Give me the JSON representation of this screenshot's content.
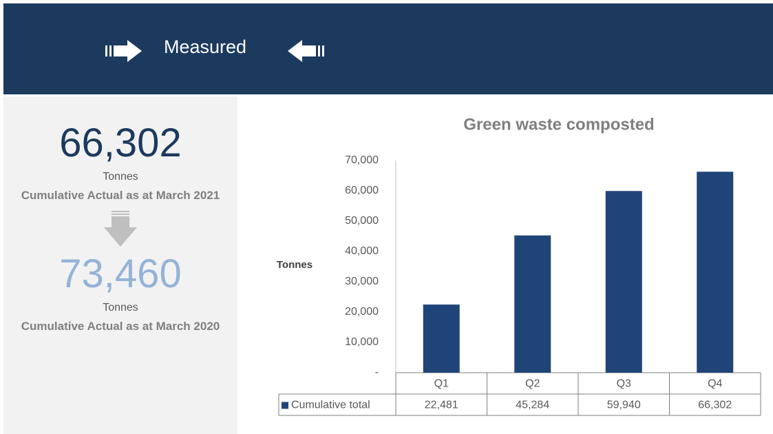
{
  "header": {
    "title": "Measured"
  },
  "kpis": [
    {
      "value": "66,302",
      "unit": "Tonnes",
      "label": "Cumulative Actual as at March 2021"
    },
    {
      "value": "73,460",
      "unit": "Tonnes",
      "label": "Cumulative Actual as at March 2020"
    }
  ],
  "chart_data": {
    "type": "bar",
    "title": "Green waste composted",
    "y_label": "Tonnes",
    "categories": [
      "Q1",
      "Q2",
      "Q3",
      "Q4"
    ],
    "series": [
      {
        "name": "Cumulative total",
        "color": "#1f4478",
        "values": [
          22481,
          45284,
          59940,
          66302
        ],
        "value_labels": [
          "22,481",
          "45,284",
          "59,940",
          "66,302"
        ]
      }
    ],
    "ylim": [
      0,
      70000
    ],
    "yticks": [
      {
        "value": 0,
        "label": "-"
      },
      {
        "value": 10000,
        "label": "10,000"
      },
      {
        "value": 20000,
        "label": "20,000"
      },
      {
        "value": 30000,
        "label": "30,000"
      },
      {
        "value": 40000,
        "label": "40,000"
      },
      {
        "value": 50000,
        "label": "50,000"
      },
      {
        "value": 60000,
        "label": "60,000"
      },
      {
        "value": 70000,
        "label": "70,000"
      }
    ],
    "grid": false
  }
}
